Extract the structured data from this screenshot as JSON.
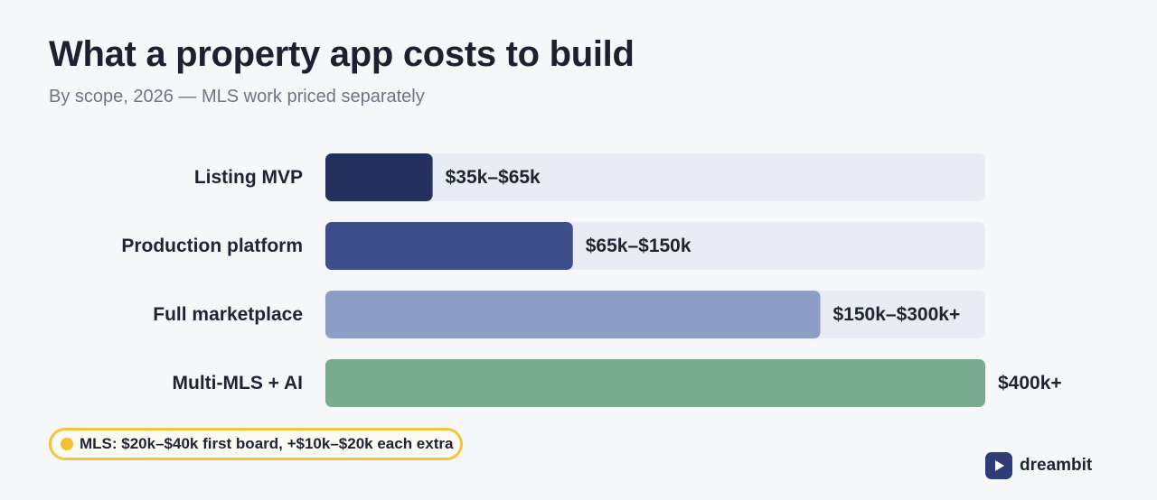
{
  "header": {
    "title": "What a property app costs to build",
    "subtitle": "By scope, 2026 — MLS work priced separately"
  },
  "chart_data": {
    "type": "bar",
    "orientation": "horizontal",
    "categories": [
      "Listing MVP",
      "Production platform",
      "Full marketplace",
      "Multi-MLS + AI"
    ],
    "values": [
      65,
      150,
      300,
      400
    ],
    "value_labels": [
      "$35k–$65k",
      "$65k–$150k",
      "$150k–$300k+",
      "$400k+"
    ],
    "unit": "$k",
    "xlim": [
      0,
      400
    ],
    "grid": false,
    "colors": [
      "#24305e",
      "#3d4e8c",
      "#8d9ec7",
      "#7aab8e"
    ],
    "track_color": "#e9ecf4"
  },
  "note": {
    "text": "MLS: $20k–$40k first board, +$10k–$20k each extra",
    "dot_color": "#f2c030"
  },
  "brand": {
    "name": "dreambit",
    "icon": "play-icon",
    "color": "#2e3c78"
  }
}
